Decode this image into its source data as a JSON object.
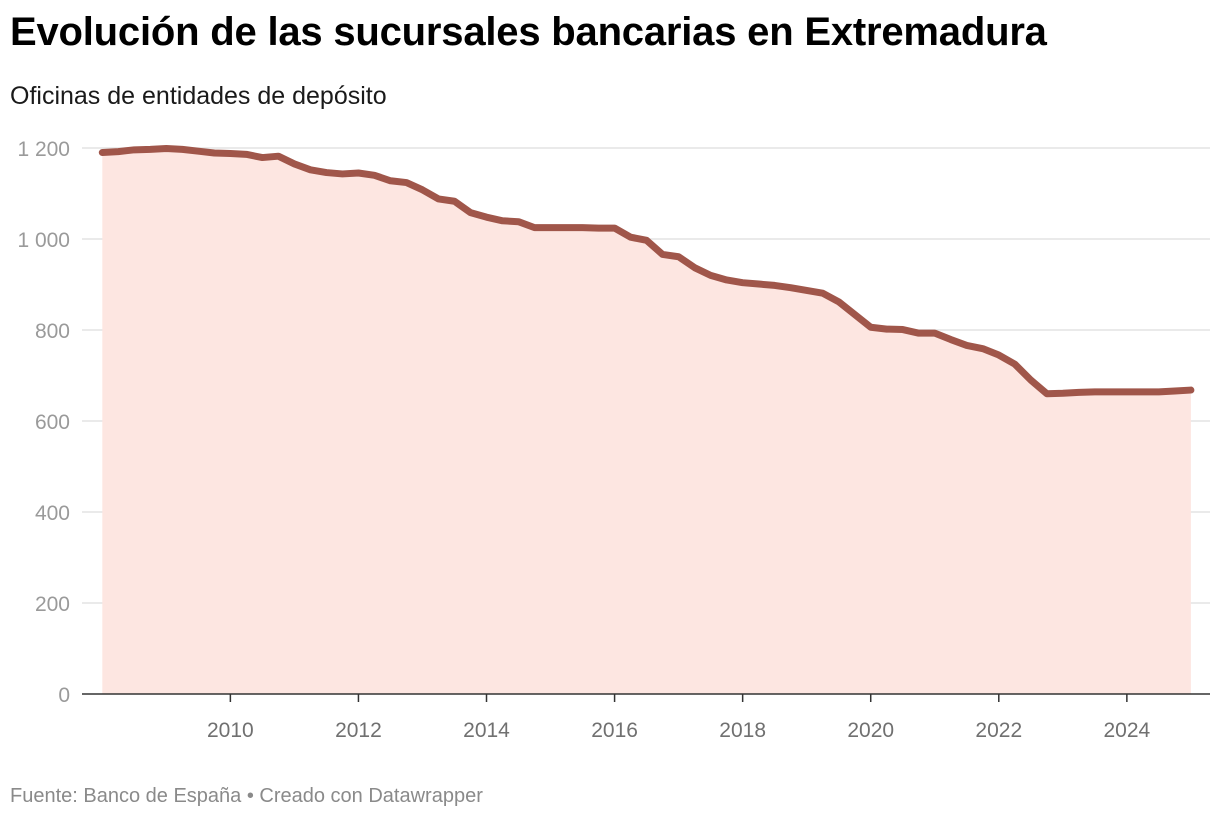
{
  "title": "Evolución de las sucursales bancarias en Extremadura",
  "subtitle": "Oficinas de entidades de depósito",
  "footer": "Fuente: Banco de España • Creado con Datawrapper",
  "colors": {
    "line": "#a0564a",
    "area": "#fde6e1",
    "grid": "#e3e3e3",
    "axis": "#333333"
  },
  "chart_data": {
    "type": "area",
    "title": "Evolución de las sucursales bancarias en Extremadura",
    "subtitle": "Oficinas de entidades de depósito",
    "xlabel": "",
    "ylabel": "",
    "xlim": [
      2008.0,
      2025.0
    ],
    "ylim": [
      0,
      1200
    ],
    "x_ticks": [
      2010,
      2012,
      2014,
      2016,
      2018,
      2020,
      2022,
      2024
    ],
    "y_ticks": [
      0,
      200,
      400,
      600,
      800,
      1000,
      1200
    ],
    "y_tick_labels": [
      "0",
      "200",
      "400",
      "600",
      "800",
      "1 000",
      "1 200"
    ],
    "grid": true,
    "series": [
      {
        "x": [
          2008.0,
          2008.25,
          2008.5,
          2008.75,
          2009.0,
          2009.25,
          2009.5,
          2009.75,
          2010.0,
          2010.25,
          2010.5,
          2010.75,
          2011.0,
          2011.25,
          2011.5,
          2011.75,
          2012.0,
          2012.25,
          2012.5,
          2012.75,
          2013.0,
          2013.25,
          2013.5,
          2013.75,
          2014.0,
          2014.25,
          2014.5,
          2014.75,
          2015.0,
          2015.25,
          2015.5,
          2015.75,
          2016.0,
          2016.25,
          2016.5,
          2016.75,
          2017.0,
          2017.25,
          2017.5,
          2017.75,
          2018.0,
          2018.25,
          2018.5,
          2018.75,
          2019.0,
          2019.25,
          2019.5,
          2019.75,
          2020.0,
          2020.25,
          2020.5,
          2020.75,
          2021.0,
          2021.25,
          2021.5,
          2021.75,
          2022.0,
          2022.25,
          2022.5,
          2022.75,
          2023.0,
          2023.25,
          2023.5,
          2023.75,
          2024.0,
          2024.25,
          2024.5,
          2024.75,
          2025.0
        ],
        "values": [
          1190,
          1192,
          1196,
          1197,
          1199,
          1197,
          1193,
          1189,
          1188,
          1186,
          1179,
          1182,
          1165,
          1152,
          1146,
          1143,
          1145,
          1140,
          1128,
          1124,
          1108,
          1088,
          1083,
          1058,
          1048,
          1040,
          1038,
          1025,
          1025,
          1025,
          1025,
          1024,
          1024,
          1004,
          997,
          966,
          961,
          937,
          920,
          910,
          904,
          901,
          898,
          893,
          887,
          881,
          862,
          834,
          806,
          802,
          801,
          793,
          793,
          779,
          766,
          759,
          745,
          725,
          690,
          660,
          661,
          663,
          664,
          664,
          664,
          664,
          664,
          666,
          668
        ]
      }
    ]
  }
}
